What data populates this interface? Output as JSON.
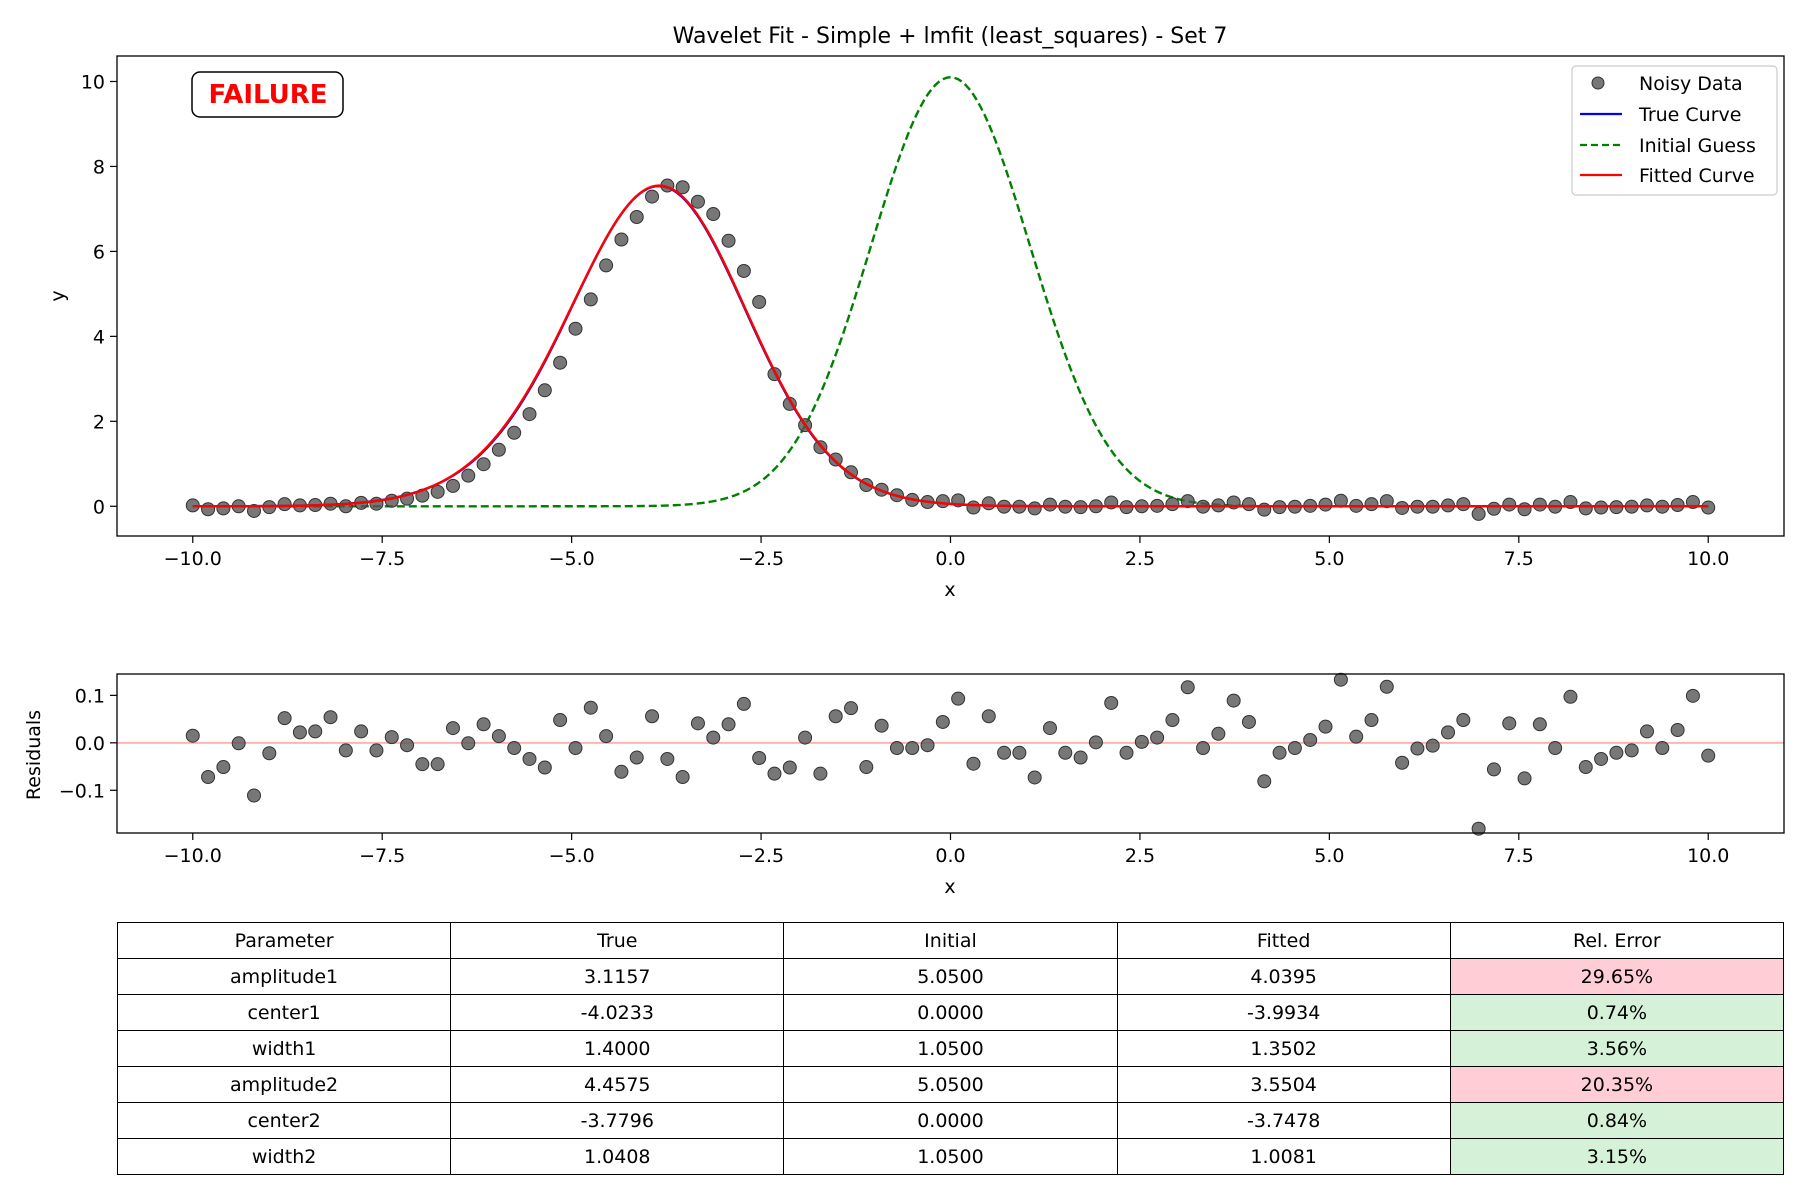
{
  "chart_data": [
    {
      "type": "line",
      "title": "Wavelet Fit - Simple + lmfit (least_squares) - Set 7",
      "xlabel": "x",
      "ylabel": "y",
      "xlim": [
        -11.0,
        11.0
      ],
      "ylim": [
        -0.7,
        10.6
      ],
      "xticks": [
        -10.0,
        -7.5,
        -5.0,
        -2.5,
        0.0,
        2.5,
        5.0,
        7.5,
        10.0
      ],
      "xtick_labels": [
        "−10.0",
        "−7.5",
        "−5.0",
        "−2.5",
        "0.0",
        "2.5",
        "5.0",
        "7.5",
        "10.0"
      ],
      "yticks": [
        0,
        2,
        4,
        6,
        8,
        10
      ],
      "ytick_labels": [
        "0",
        "2",
        "4",
        "6",
        "8",
        "10"
      ],
      "grid": false,
      "status_badge": "FAILURE",
      "legend": {
        "placement": "top-right",
        "entries": [
          "Noisy Data",
          "True Curve",
          "Initial Guess",
          "Fitted Curve"
        ]
      },
      "series": [
        {
          "name": "Noisy Data",
          "kind": "scatter",
          "color": "#555555",
          "x": [
            -10.0,
            -9.798,
            -9.596,
            -9.394,
            -9.192,
            -8.99,
            -8.788,
            -8.586,
            -8.384,
            -8.182,
            -7.98,
            -7.778,
            -7.576,
            -7.374,
            -7.172,
            -6.97,
            -6.768,
            -6.566,
            -6.364,
            -6.162,
            -5.96,
            -5.758,
            -5.556,
            -5.354,
            -5.152,
            -4.949,
            -4.747,
            -4.545,
            -4.343,
            -4.141,
            -3.939,
            -3.737,
            -3.535,
            -3.333,
            -3.131,
            -2.929,
            -2.727,
            -2.525,
            -2.323,
            -2.121,
            -1.919,
            -1.717,
            -1.515,
            -1.313,
            -1.111,
            -0.909,
            -0.707,
            -0.505,
            -0.303,
            -0.101,
            0.101,
            0.303,
            0.505,
            0.707,
            0.909,
            1.111,
            1.313,
            1.515,
            1.717,
            1.919,
            2.121,
            2.323,
            2.525,
            2.727,
            2.929,
            3.131,
            3.333,
            3.535,
            3.737,
            3.939,
            4.141,
            4.343,
            4.545,
            4.747,
            4.949,
            5.152,
            5.354,
            5.556,
            5.758,
            5.96,
            6.162,
            6.364,
            6.566,
            6.768,
            6.97,
            7.172,
            7.374,
            7.576,
            7.778,
            7.98,
            8.182,
            8.384,
            8.586,
            8.788,
            8.99,
            9.192,
            9.394,
            9.596,
            9.798,
            10.0
          ],
          "y": [
            0.02,
            -0.07,
            -0.05,
            0.0,
            -0.11,
            -0.02,
            0.05,
            0.02,
            0.03,
            0.06,
            0.0,
            0.08,
            0.06,
            0.13,
            0.18,
            0.25,
            0.34,
            0.48,
            0.72,
            0.99,
            1.33,
            1.73,
            2.17,
            2.73,
            3.38,
            4.18,
            4.87,
            5.67,
            6.28,
            6.81,
            7.29,
            7.55,
            7.51,
            7.17,
            6.88,
            6.25,
            5.54,
            4.81,
            3.11,
            2.41,
            1.91,
            1.39,
            1.1,
            0.8,
            0.5,
            0.39,
            0.26,
            0.15,
            0.1,
            0.12,
            0.14,
            -0.03,
            0.07,
            -0.01,
            -0.01,
            -0.05,
            0.04,
            -0.01,
            -0.02,
            0.0,
            0.09,
            -0.02,
            0.0,
            0.01,
            0.05,
            0.12,
            -0.01,
            0.02,
            0.09,
            0.05,
            -0.08,
            -0.02,
            -0.01,
            0.01,
            0.04,
            0.13,
            0.01,
            0.05,
            0.12,
            -0.04,
            -0.01,
            -0.01,
            0.02,
            0.05,
            -0.18,
            -0.06,
            0.04,
            -0.07,
            0.04,
            -0.01,
            0.1,
            -0.05,
            -0.03,
            -0.02,
            -0.01,
            0.02,
            -0.01,
            0.03,
            0.1,
            -0.03
          ]
        },
        {
          "name": "True Curve",
          "kind": "line",
          "color": "#0000ff",
          "model": "double-gaussian",
          "x_range": [
            -10.0,
            10.0
          ],
          "amplitude1": 3.1157,
          "center1": -4.0233,
          "width1": 1.4,
          "amplitude2": 4.4575,
          "center2": -3.7796,
          "width2": 1.0408
        },
        {
          "name": "Initial Guess",
          "kind": "line",
          "style": "dashed",
          "color": "#008000",
          "model": "double-gaussian",
          "x_range": [
            -10.0,
            10.0
          ],
          "amplitude1": 5.05,
          "center1": 0.0,
          "width1": 1.05,
          "amplitude2": 5.05,
          "center2": 0.0,
          "width2": 1.05
        },
        {
          "name": "Fitted Curve",
          "kind": "line",
          "color": "#ff0000",
          "model": "double-gaussian",
          "x_range": [
            -10.0,
            10.0
          ],
          "amplitude1": 4.0395,
          "center1": -3.9934,
          "width1": 1.3502,
          "amplitude2": 3.5504,
          "center2": -3.7478,
          "width2": 1.0081
        }
      ]
    },
    {
      "type": "scatter",
      "xlabel": "x",
      "ylabel": "Residuals",
      "xlim": [
        -11.0,
        11.0
      ],
      "ylim": [
        -0.19,
        0.145
      ],
      "xticks": [
        -10.0,
        -7.5,
        -5.0,
        -2.5,
        0.0,
        2.5,
        5.0,
        7.5,
        10.0
      ],
      "xtick_labels": [
        "−10.0",
        "−7.5",
        "−5.0",
        "−2.5",
        "0.0",
        "2.5",
        "5.0",
        "7.5",
        "10.0"
      ],
      "yticks": [
        -0.1,
        0.0,
        0.1
      ],
      "ytick_labels": [
        "−0.1",
        "0.0",
        "0.1"
      ],
      "grid": false,
      "zero_line_color": "#ffb3b3",
      "series": [
        {
          "kind": "scatter",
          "color": "#555555",
          "x": [
            -10.0,
            -9.798,
            -9.596,
            -9.394,
            -9.192,
            -8.99,
            -8.788,
            -8.586,
            -8.384,
            -8.182,
            -7.98,
            -7.778,
            -7.576,
            -7.374,
            -7.172,
            -6.97,
            -6.768,
            -6.566,
            -6.364,
            -6.162,
            -5.96,
            -5.758,
            -5.556,
            -5.354,
            -5.152,
            -4.949,
            -4.747,
            -4.545,
            -4.343,
            -4.141,
            -3.939,
            -3.737,
            -3.535,
            -3.333,
            -3.131,
            -2.929,
            -2.727,
            -2.525,
            -2.323,
            -2.121,
            -1.919,
            -1.717,
            -1.515,
            -1.313,
            -1.111,
            -0.909,
            -0.707,
            -0.505,
            -0.303,
            -0.101,
            0.101,
            0.303,
            0.505,
            0.707,
            0.909,
            1.111,
            1.313,
            1.515,
            1.717,
            1.919,
            2.121,
            2.323,
            2.525,
            2.727,
            2.929,
            3.131,
            3.333,
            3.535,
            3.737,
            3.939,
            4.141,
            4.343,
            4.545,
            4.747,
            4.949,
            5.152,
            5.354,
            5.556,
            5.758,
            5.96,
            6.162,
            6.364,
            6.566,
            6.768,
            6.97,
            7.172,
            7.374,
            7.576,
            7.778,
            7.98,
            8.182,
            8.384,
            8.586,
            8.788,
            8.99,
            9.192,
            9.394,
            9.596,
            9.798,
            10.0
          ],
          "y": [
            0.015,
            -0.072,
            -0.051,
            -0.001,
            -0.111,
            -0.022,
            0.052,
            0.022,
            0.024,
            0.054,
            -0.016,
            0.024,
            -0.016,
            0.012,
            -0.005,
            -0.045,
            -0.045,
            0.031,
            -0.001,
            0.039,
            0.014,
            -0.011,
            -0.034,
            -0.052,
            0.048,
            -0.011,
            0.074,
            0.014,
            -0.061,
            -0.031,
            0.056,
            -0.034,
            -0.072,
            0.041,
            0.011,
            0.039,
            0.082,
            -0.032,
            -0.065,
            -0.052,
            0.011,
            -0.065,
            0.056,
            0.073,
            -0.051,
            0.036,
            -0.011,
            -0.011,
            -0.005,
            0.044,
            0.093,
            -0.044,
            0.056,
            -0.021,
            -0.021,
            -0.073,
            0.031,
            -0.021,
            -0.031,
            0.001,
            0.084,
            -0.021,
            0.002,
            0.011,
            0.048,
            0.117,
            -0.011,
            0.019,
            0.089,
            0.044,
            -0.081,
            -0.021,
            -0.011,
            0.006,
            0.034,
            0.133,
            0.013,
            0.048,
            0.118,
            -0.042,
            -0.012,
            -0.006,
            0.022,
            0.048,
            -0.181,
            -0.056,
            0.041,
            -0.075,
            0.039,
            -0.011,
            0.097,
            -0.051,
            -0.034,
            -0.021,
            -0.016,
            0.024,
            -0.011,
            0.027,
            0.099,
            -0.027
          ]
        }
      ]
    },
    {
      "type": "table",
      "columns": [
        "Parameter",
        "True",
        "Initial",
        "Fitted",
        "Rel. Error"
      ],
      "rows": [
        {
          "param": "amplitude1",
          "true": "3.1157",
          "initial": "5.0500",
          "fitted": "4.0395",
          "rel_error": "29.65%",
          "status": "bad"
        },
        {
          "param": "center1",
          "true": "-4.0233",
          "initial": "0.0000",
          "fitted": "-3.9934",
          "rel_error": "0.74%",
          "status": "good"
        },
        {
          "param": "width1",
          "true": "1.4000",
          "initial": "1.0500",
          "fitted": "1.3502",
          "rel_error": "3.56%",
          "status": "good"
        },
        {
          "param": "amplitude2",
          "true": "4.4575",
          "initial": "5.0500",
          "fitted": "3.5504",
          "rel_error": "20.35%",
          "status": "bad"
        },
        {
          "param": "center2",
          "true": "-3.7796",
          "initial": "0.0000",
          "fitted": "-3.7478",
          "rel_error": "0.84%",
          "status": "good"
        },
        {
          "param": "width2",
          "true": "1.0408",
          "initial": "1.0500",
          "fitted": "1.0081",
          "rel_error": "3.15%",
          "status": "good"
        }
      ]
    }
  ]
}
